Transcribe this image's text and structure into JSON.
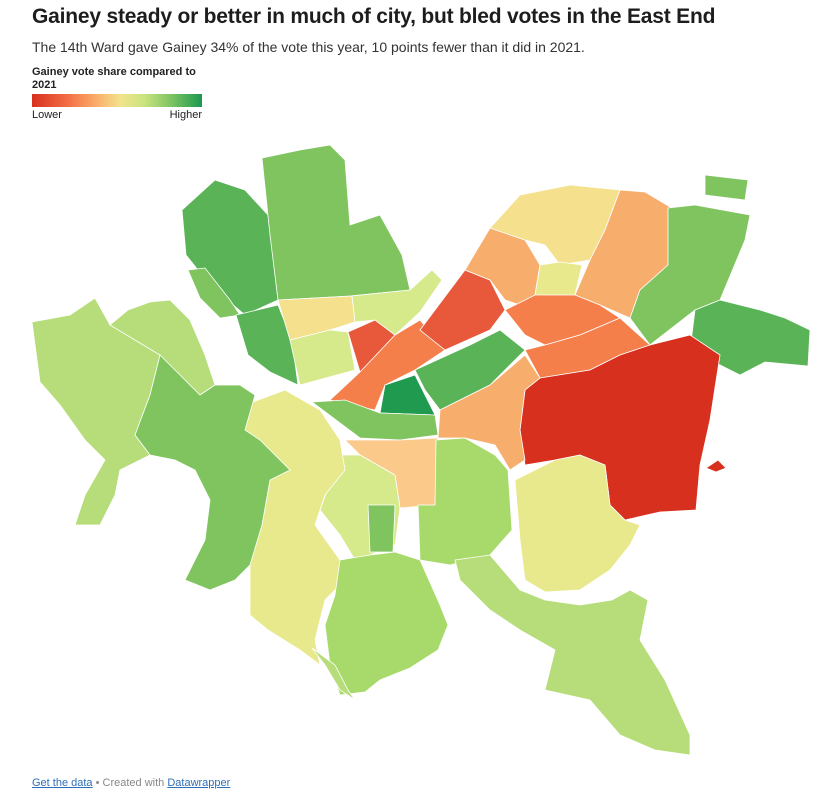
{
  "header": {
    "title": "Gainey steady or better in much of city, but bled votes in the East End",
    "subtitle": "The 14th Ward gave Gainey 34% of the vote this year, 10 points fewer than it did in 2021."
  },
  "legend": {
    "title": "Gainey vote share compared to 2021",
    "low_label": "Lower",
    "high_label": "Higher"
  },
  "colors": {
    "darkred": "#d7301f",
    "red": "#e8593b",
    "orange": "#f57f4b",
    "lightorange": "#f7ad6c",
    "paleorange": "#fbc98a",
    "yellow": "#f5e08e",
    "paleyellow": "#e8e98d",
    "yellowgreen": "#d6e98b",
    "lightgreen": "#b6dd7a",
    "green": "#a8da6b",
    "midgreen": "#80c45f",
    "darkgreen": "#5bb358",
    "deepgreen": "#1f9a4f",
    "river": "#ffffff"
  },
  "footer": {
    "get_data": "Get the data",
    "separator": " • Created with ",
    "tool": "Datawrapper"
  }
}
